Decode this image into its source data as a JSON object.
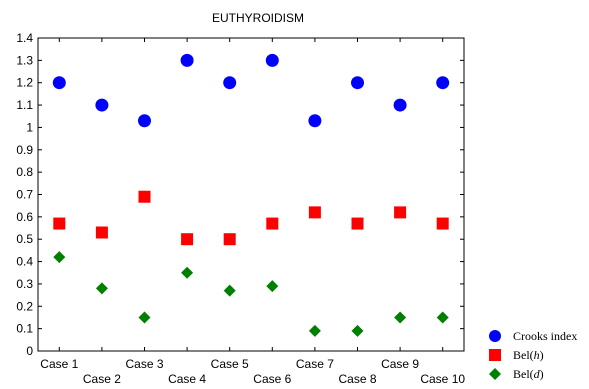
{
  "chart_data": {
    "type": "scatter",
    "title": "EUTHYROIDISM",
    "xlabel": "",
    "ylabel": "",
    "categories": [
      "Case 1",
      "Case 2",
      "Case 3",
      "Case 4",
      "Case 5",
      "Case 6",
      "Case 7",
      "Case 8",
      "Case 9",
      "Case 10"
    ],
    "ylim": [
      0,
      1.4
    ],
    "yticks": [
      "0",
      "0.1",
      "0.2",
      "0.3",
      "0.4",
      "0.5",
      "0.6",
      "0.7",
      "0.8",
      "0.9",
      "1",
      "1.1",
      "1.2",
      "1.3",
      "1.4"
    ],
    "grid": false,
    "legend_position": "bottom-right",
    "series": [
      {
        "name": "Crooks index",
        "name_main": "Crooks index",
        "name_italic": "",
        "name_tail": "",
        "marker": "circle",
        "color": "#0000ff",
        "values": [
          1.2,
          1.1,
          1.03,
          1.3,
          1.2,
          1.3,
          1.03,
          1.2,
          1.1,
          1.2
        ]
      },
      {
        "name": "Bel(h)",
        "name_main": "Bel(",
        "name_italic": "h",
        "name_tail": ")",
        "marker": "square",
        "color": "#ff0000",
        "values": [
          0.57,
          0.53,
          0.69,
          0.5,
          0.5,
          0.57,
          0.62,
          0.57,
          0.62,
          0.57
        ]
      },
      {
        "name": "Bel(d)",
        "name_main": "Bel(",
        "name_italic": "d",
        "name_tail": ")",
        "marker": "diamond",
        "color": "#008000",
        "values": [
          0.42,
          0.28,
          0.15,
          0.35,
          0.27,
          0.29,
          0.09,
          0.09,
          0.15,
          0.15
        ]
      }
    ]
  }
}
